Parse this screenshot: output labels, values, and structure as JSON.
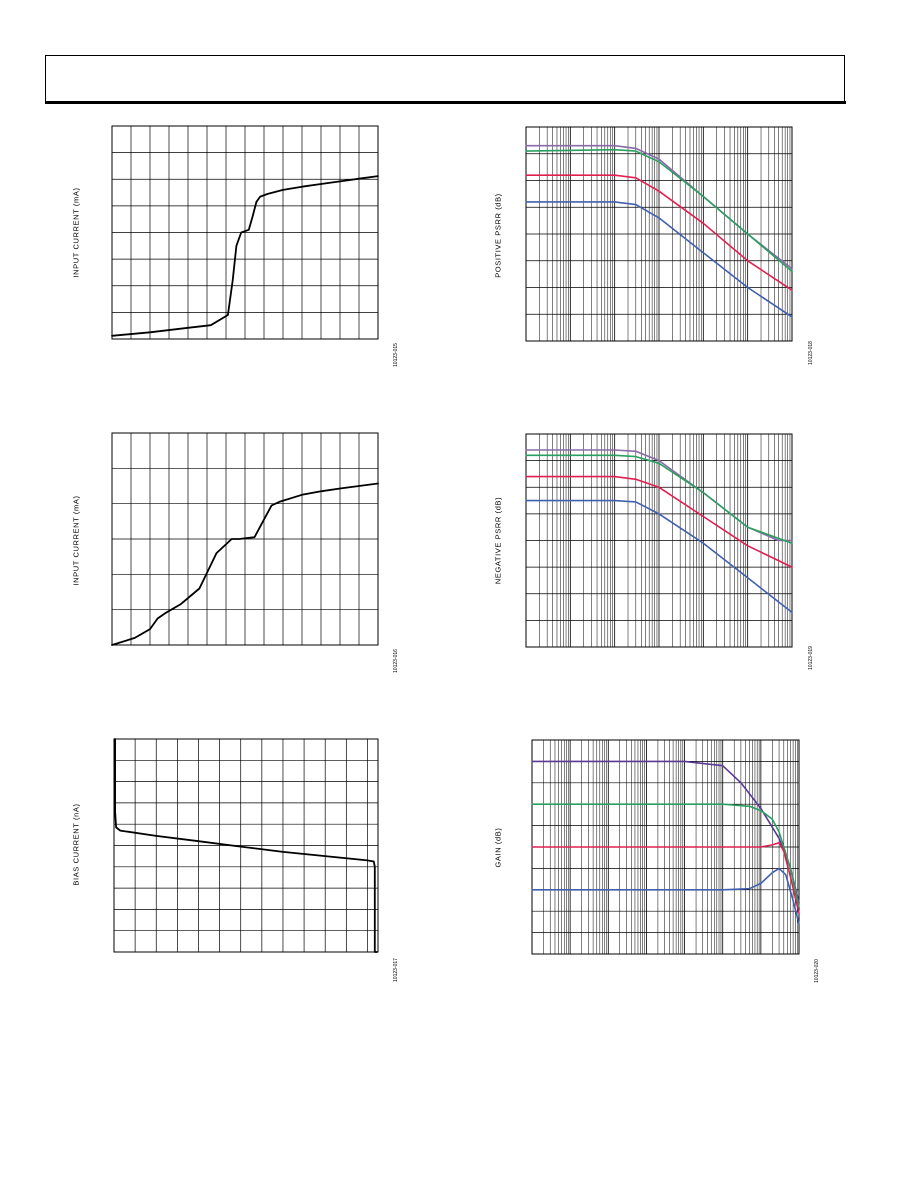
{
  "page": {
    "header_title": ""
  },
  "chart_data": [
    {
      "id": "c1",
      "type": "line",
      "ylabel": "INPUT CURRENT (mA)",
      "figure_id": "10123-015",
      "xscale": "linear",
      "xlim": [
        0,
        14
      ],
      "ylim": [
        0,
        8
      ],
      "grid": {
        "x_divisions": 14,
        "y_divisions": 8
      },
      "series": [
        {
          "color": "#000000",
          "x": [
            0,
            2,
            4,
            5.2,
            6.1,
            6.35,
            6.55,
            6.8,
            7.2,
            7.4,
            7.6,
            7.8,
            8.2,
            9,
            10,
            11,
            12,
            13,
            14
          ],
          "y": [
            0.12,
            0.25,
            0.42,
            0.52,
            0.9,
            2.2,
            3.5,
            4.0,
            4.1,
            4.6,
            5.15,
            5.35,
            5.45,
            5.6,
            5.72,
            5.82,
            5.92,
            6.02,
            6.12
          ]
        }
      ]
    },
    {
      "id": "c2",
      "type": "line",
      "ylabel": "INPUT CURRENT (mA)",
      "figure_id": "10123-016",
      "xscale": "linear",
      "xlim": [
        0,
        14
      ],
      "ylim": [
        0,
        6
      ],
      "grid": {
        "x_divisions": 14,
        "y_divisions": 6
      },
      "series": [
        {
          "color": "#000000",
          "x": [
            0,
            1.2,
            2,
            2.4,
            2.8,
            3.6,
            4.6,
            5.5,
            6.3,
            6.7,
            7.5,
            7.8,
            8.4,
            8.8,
            10,
            11,
            12,
            13,
            14
          ],
          "y": [
            0,
            0.2,
            0.45,
            0.75,
            0.9,
            1.15,
            1.6,
            2.6,
            3.0,
            3.0,
            3.05,
            3.35,
            3.95,
            4.05,
            4.25,
            4.35,
            4.43,
            4.5,
            4.57
          ]
        }
      ]
    },
    {
      "id": "c3",
      "type": "line",
      "ylabel": "BIAS CURRENT (nA)",
      "figure_id": "10123-017",
      "xscale": "linear",
      "xlim": [
        0,
        12.5
      ],
      "ylim": [
        0,
        10
      ],
      "grid": {
        "x_divisions": 12.5,
        "y_divisions": 10
      },
      "series": [
        {
          "color": "#000000",
          "x": [
            0.05,
            0.05,
            0.1,
            0.3,
            2,
            4,
            6,
            8,
            10,
            12,
            12.3,
            12.35,
            12.35,
            12.45
          ],
          "y": [
            10,
            6.6,
            5.85,
            5.7,
            5.45,
            5.2,
            4.95,
            4.7,
            4.5,
            4.3,
            4.25,
            4.0,
            0,
            0
          ]
        }
      ]
    },
    {
      "id": "c4",
      "type": "line",
      "ylabel": "POSITIVE PSRR (dB)",
      "figure_id": "10123-018",
      "xscale": "log",
      "xlim": [
        1,
        1000000
      ],
      "ylim": [
        0,
        8
      ],
      "grid": {
        "y_divisions": 8
      },
      "series": [
        {
          "color": "#8a6aa8",
          "x": [
            1,
            100,
            300,
            1000,
            10000,
            100000,
            1000000
          ],
          "y": [
            7.3,
            7.3,
            7.2,
            6.8,
            5.4,
            4.0,
            2.7
          ]
        },
        {
          "color": "#2aa060",
          "x": [
            1,
            100,
            300,
            1000,
            10000,
            100000,
            1000000
          ],
          "y": [
            7.1,
            7.15,
            7.1,
            6.7,
            5.4,
            4.0,
            2.6
          ]
        },
        {
          "color": "#e02050",
          "x": [
            1,
            100,
            300,
            1000,
            10000,
            100000,
            1000000
          ],
          "y": [
            6.2,
            6.2,
            6.1,
            5.6,
            4.4,
            3.0,
            1.9
          ]
        },
        {
          "color": "#4060b0",
          "x": [
            1,
            100,
            300,
            1000,
            10000,
            100000,
            1000000
          ],
          "y": [
            5.2,
            5.2,
            5.1,
            4.6,
            3.3,
            2.0,
            0.9
          ]
        }
      ]
    },
    {
      "id": "c5",
      "type": "line",
      "ylabel": "NEGATIVE PSRR (dB)",
      "figure_id": "10123-019",
      "xscale": "log",
      "xlim": [
        1,
        1000000
      ],
      "ylim": [
        0,
        8
      ],
      "grid": {
        "y_divisions": 8
      },
      "series": [
        {
          "color": "#8a6aa8",
          "x": [
            1,
            100,
            300,
            1000,
            10000,
            100000,
            500000,
            1000000
          ],
          "y": [
            7.4,
            7.4,
            7.35,
            7.0,
            5.8,
            4.5,
            4.0,
            4.0
          ]
        },
        {
          "color": "#2aa060",
          "x": [
            1,
            100,
            300,
            1000,
            10000,
            100000,
            1000000
          ],
          "y": [
            7.2,
            7.2,
            7.15,
            6.9,
            5.8,
            4.5,
            3.9
          ]
        },
        {
          "color": "#e02050",
          "x": [
            1,
            100,
            300,
            1000,
            10000,
            100000,
            1000000
          ],
          "y": [
            6.4,
            6.4,
            6.3,
            6.0,
            4.9,
            3.8,
            3.0
          ]
        },
        {
          "color": "#4060b0",
          "x": [
            1,
            100,
            300,
            1000,
            10000,
            100000,
            1000000
          ],
          "y": [
            5.5,
            5.5,
            5.45,
            5.0,
            3.9,
            2.6,
            1.3
          ]
        }
      ]
    },
    {
      "id": "c6",
      "type": "line",
      "ylabel": "GAIN (dB)",
      "figure_id": "10123-020",
      "xscale": "log",
      "xlim": [
        1,
        10000000
      ],
      "ylim": [
        0,
        10
      ],
      "grid": {
        "y_divisions": 10
      },
      "series": [
        {
          "color": "#5a3a98",
          "x": [
            1,
            10000,
            100000,
            300000,
            1000000,
            3000000,
            6000000,
            10000000
          ],
          "y": [
            9.0,
            9.0,
            8.8,
            8.0,
            6.8,
            5.4,
            4.0,
            2.4
          ]
        },
        {
          "color": "#2aa060",
          "x": [
            1,
            100000,
            500000,
            1000000,
            2000000,
            3000000,
            6000000,
            10000000
          ],
          "y": [
            7.0,
            7.0,
            6.9,
            6.7,
            6.3,
            5.7,
            4.0,
            2.2
          ]
        },
        {
          "color": "#e02050",
          "x": [
            1,
            100000,
            1000000,
            2000000,
            3000000,
            4000000,
            6000000,
            10000000
          ],
          "y": [
            5.0,
            5.0,
            5.0,
            5.1,
            5.2,
            4.8,
            3.6,
            1.9
          ]
        },
        {
          "color": "#4060b0",
          "x": [
            1,
            100000,
            500000,
            1000000,
            2000000,
            3000000,
            4500000,
            7000000,
            10000000
          ],
          "y": [
            3.0,
            3.0,
            3.05,
            3.3,
            3.8,
            4.0,
            3.7,
            2.5,
            1.4
          ]
        }
      ]
    }
  ]
}
